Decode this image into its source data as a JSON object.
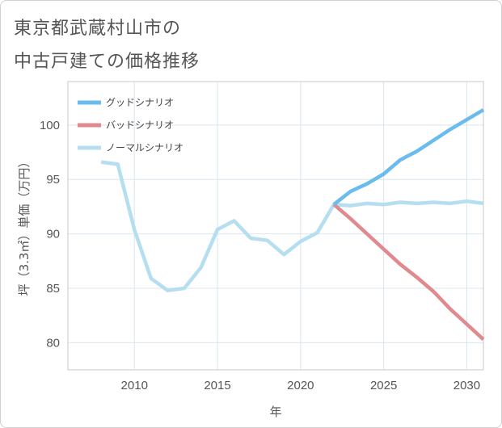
{
  "title_lines": [
    "東京都武蔵村山市の",
    "中古戸建ての価格推移"
  ],
  "chart_data": {
    "type": "line",
    "xlabel": "年",
    "ylabel": "坪（3.3㎡）単価（万円）",
    "xlim": [
      2006,
      2031
    ],
    "ylim": [
      77.5,
      104
    ],
    "x_ticks": [
      2010,
      2015,
      2020,
      2025,
      2030
    ],
    "y_ticks": [
      80,
      85,
      90,
      95,
      100
    ],
    "grid": true,
    "legend_position": "top-left",
    "series": [
      {
        "name": "グッドシナリオ",
        "color": "#6bbcee",
        "x": [
          2022,
          2023,
          2024,
          2025,
          2026,
          2027,
          2028,
          2029,
          2030,
          2031
        ],
        "y": [
          92.7,
          93.9,
          94.6,
          95.5,
          96.8,
          97.6,
          98.6,
          99.6,
          100.5,
          101.4
        ]
      },
      {
        "name": "バッドシナリオ",
        "color": "#e08a90",
        "x": [
          2022,
          2023,
          2024,
          2025,
          2026,
          2027,
          2028,
          2029,
          2030,
          2031
        ],
        "y": [
          92.7,
          91.4,
          90.0,
          88.6,
          87.2,
          86.0,
          84.7,
          83.1,
          81.7,
          80.3
        ]
      },
      {
        "name": "ノーマルシナリオ",
        "color": "#b5def0",
        "x": [
          2008,
          2009,
          2010,
          2011,
          2012,
          2013,
          2014,
          2015,
          2016,
          2017,
          2018,
          2019,
          2020,
          2021,
          2022,
          2023,
          2024,
          2025,
          2026,
          2027,
          2028,
          2029,
          2030,
          2031
        ],
        "y": [
          96.6,
          96.4,
          90.4,
          85.9,
          84.8,
          85.0,
          86.9,
          90.4,
          91.2,
          89.6,
          89.4,
          88.1,
          89.3,
          90.1,
          92.7,
          92.6,
          92.8,
          92.7,
          92.9,
          92.8,
          92.9,
          92.8,
          93.0,
          92.8
        ]
      }
    ]
  }
}
